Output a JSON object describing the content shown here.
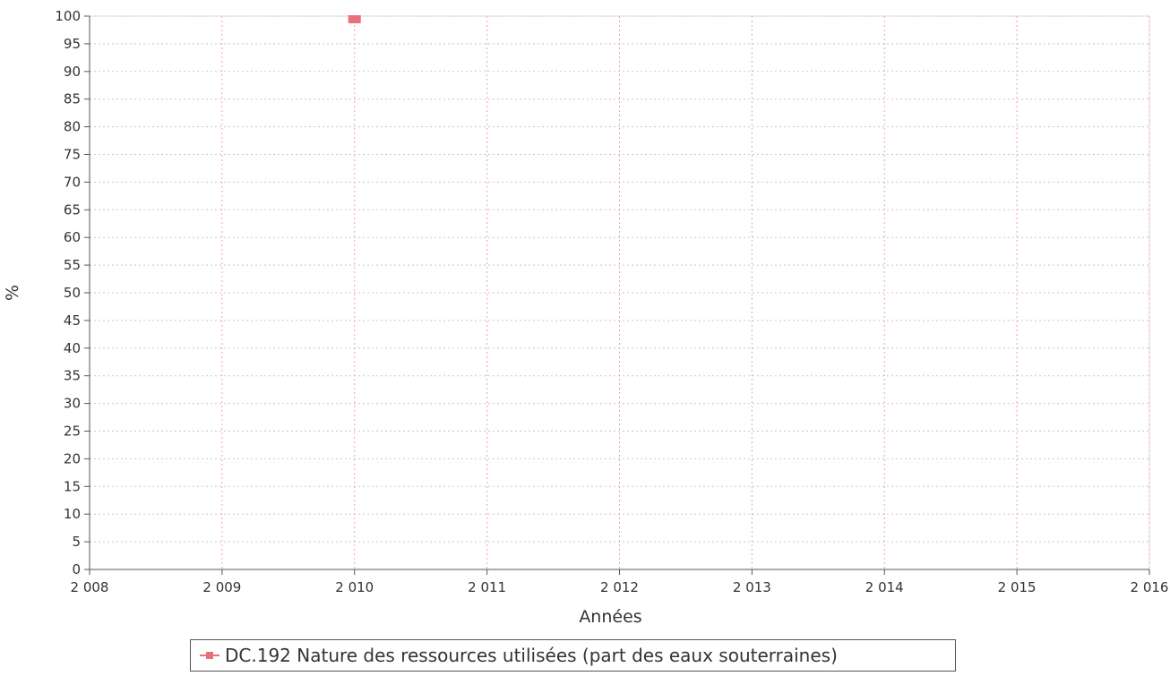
{
  "chart_data": {
    "type": "line",
    "title": "",
    "xlabel": "Années",
    "ylabel": "%",
    "xlim": [
      2008,
      2016
    ],
    "ylim": [
      0,
      100
    ],
    "x_ticks": [
      2008,
      2009,
      2010,
      2011,
      2012,
      2013,
      2014,
      2015,
      2016
    ],
    "x_tick_labels": [
      "2 008",
      "2 009",
      "2 010",
      "2 011",
      "2 012",
      "2 013",
      "2 014",
      "2 015",
      "2 016"
    ],
    "y_ticks": [
      0,
      5,
      10,
      15,
      20,
      25,
      30,
      35,
      40,
      45,
      50,
      55,
      60,
      65,
      70,
      75,
      80,
      85,
      90,
      95,
      100
    ],
    "grid": true,
    "legend_position": "bottom",
    "series": [
      {
        "name": "DC.192 Nature des ressources utilisées (part des eaux souterraines)",
        "color": "#e8707e",
        "marker": "square",
        "x": [
          2010
        ],
        "y": [
          100
        ]
      }
    ]
  }
}
